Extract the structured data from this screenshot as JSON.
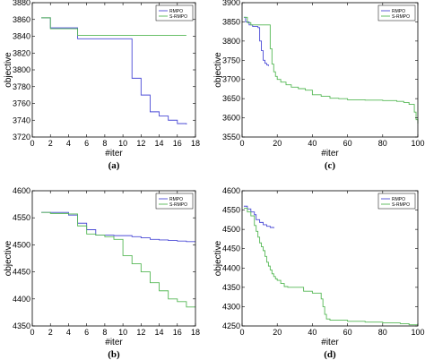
{
  "chart_data": [
    {
      "type": "line",
      "panel_label": "(a)",
      "xlabel": "#iter",
      "ylabel": "objective",
      "xlim": [
        0,
        18
      ],
      "ylim": [
        3720,
        3880
      ],
      "xticks": [
        0,
        2,
        4,
        6,
        8,
        10,
        12,
        14,
        16,
        18
      ],
      "yticks": [
        3720,
        3740,
        3760,
        3780,
        3800,
        3820,
        3840,
        3860,
        3880
      ],
      "legend_position": "top-right",
      "grid": false,
      "series": [
        {
          "name": "RMPO",
          "color": "#4b4bd6",
          "step": true,
          "x": [
            1,
            2,
            5,
            11,
            12,
            13,
            14,
            15,
            16,
            17
          ],
          "y": [
            3862,
            3850,
            3837,
            3790,
            3770,
            3750,
            3745,
            3740,
            3736,
            3735
          ]
        },
        {
          "name": "S-RMPO",
          "color": "#55b855",
          "step": true,
          "x": [
            1,
            2,
            5,
            17
          ],
          "y": [
            3862,
            3849,
            3841,
            3841
          ]
        }
      ]
    },
    {
      "type": "line",
      "panel_label": "(c)",
      "xlabel": "#iter",
      "ylabel": "objective",
      "xlim": [
        0,
        100
      ],
      "ylim": [
        3550,
        3900
      ],
      "xticks": [
        0,
        20,
        40,
        60,
        80,
        100
      ],
      "yticks": [
        3550,
        3600,
        3650,
        3700,
        3750,
        3800,
        3850,
        3900
      ],
      "legend_position": "top-right",
      "grid": false,
      "series": [
        {
          "name": "RMPO",
          "color": "#4b4bd6",
          "step": true,
          "x": [
            1,
            2,
            4,
            6,
            9,
            10,
            11,
            12,
            13,
            14,
            15
          ],
          "y": [
            3862,
            3850,
            3842,
            3838,
            3835,
            3800,
            3775,
            3750,
            3742,
            3738,
            3735
          ]
        },
        {
          "name": "S-RMPO",
          "color": "#55b855",
          "step": true,
          "x": [
            1,
            3,
            5,
            15,
            16,
            17,
            18,
            19,
            20,
            22,
            25,
            28,
            32,
            36,
            40,
            45,
            50,
            55,
            60,
            70,
            80,
            88,
            92,
            95,
            98,
            99,
            100
          ],
          "y": [
            3862,
            3848,
            3842,
            3842,
            3780,
            3740,
            3720,
            3708,
            3700,
            3693,
            3686,
            3680,
            3676,
            3672,
            3660,
            3656,
            3651,
            3650,
            3647,
            3646,
            3645,
            3643,
            3640,
            3635,
            3615,
            3595,
            3585
          ]
        }
      ]
    },
    {
      "type": "line",
      "panel_label": "(b)",
      "xlabel": "#iter",
      "ylabel": "objective",
      "xlim": [
        0,
        18
      ],
      "ylim": [
        4350,
        4600
      ],
      "xticks": [
        0,
        2,
        4,
        6,
        8,
        10,
        12,
        14,
        16,
        18
      ],
      "yticks": [
        4350,
        4400,
        4450,
        4500,
        4550,
        4600
      ],
      "legend_position": "top-right",
      "grid": false,
      "series": [
        {
          "name": "RMPO",
          "color": "#4b4bd6",
          "step": true,
          "x": [
            1,
            4,
            5,
            6,
            7,
            9,
            11,
            12,
            13,
            14,
            15,
            16,
            17,
            18
          ],
          "y": [
            4560,
            4555,
            4540,
            4528,
            4518,
            4517,
            4515,
            4513,
            4510,
            4509,
            4508,
            4507,
            4506,
            4506
          ]
        },
        {
          "name": "S-RMPO",
          "color": "#55b855",
          "step": true,
          "x": [
            1,
            2,
            4,
            5,
            6,
            7,
            8,
            9,
            10,
            11,
            12,
            13,
            14,
            15,
            16,
            17,
            18
          ],
          "y": [
            4560,
            4558,
            4557,
            4535,
            4520,
            4518,
            4515,
            4510,
            4480,
            4465,
            4450,
            4430,
            4415,
            4400,
            4395,
            4385,
            4385
          ]
        }
      ]
    },
    {
      "type": "line",
      "panel_label": "(d)",
      "xlabel": "#iter",
      "ylabel": "objective",
      "xlim": [
        0,
        100
      ],
      "ylim": [
        4250,
        4600
      ],
      "xticks": [
        0,
        20,
        40,
        60,
        80,
        100
      ],
      "yticks": [
        4250,
        4300,
        4350,
        4400,
        4450,
        4500,
        4550,
        4600
      ],
      "legend_position": "top-right",
      "grid": false,
      "series": [
        {
          "name": "RMPO",
          "color": "#4b4bd6",
          "step": true,
          "x": [
            1,
            3,
            5,
            7,
            8,
            10,
            12,
            14,
            16,
            18
          ],
          "y": [
            4560,
            4553,
            4545,
            4538,
            4525,
            4518,
            4512,
            4508,
            4505,
            4503
          ]
        },
        {
          "name": "S-RMPO",
          "color": "#55b855",
          "step": true,
          "x": [
            1,
            3,
            5,
            7,
            8,
            9,
            10,
            11,
            12,
            13,
            14,
            15,
            16,
            17,
            18,
            19,
            20,
            22,
            24,
            26,
            28,
            30,
            35,
            40,
            45,
            46,
            47,
            48,
            50,
            60,
            70,
            80,
            90,
            95,
            100
          ],
          "y": [
            4555,
            4545,
            4535,
            4510,
            4495,
            4480,
            4465,
            4455,
            4445,
            4430,
            4415,
            4405,
            4395,
            4385,
            4378,
            4372,
            4368,
            4360,
            4352,
            4350,
            4350,
            4350,
            4340,
            4335,
            4320,
            4300,
            4280,
            4268,
            4265,
            4262,
            4260,
            4258,
            4256,
            4253,
            4250
          ]
        }
      ]
    }
  ]
}
